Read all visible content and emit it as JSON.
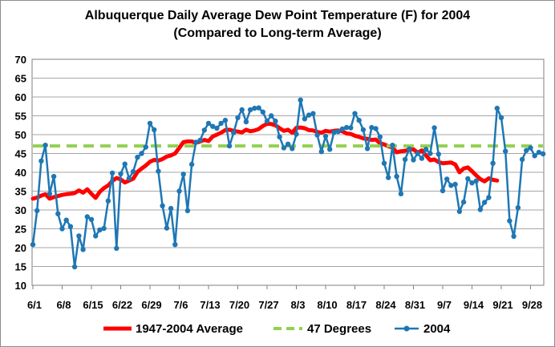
{
  "chart_data": {
    "type": "line",
    "title": "Albuquerque Daily Average Dew Point Temperature (F) for 2004",
    "subtitle": "(Compared to Long-term Average)",
    "xlabel": "",
    "ylabel": "",
    "ylim": [
      10,
      70
    ],
    "yticks": [
      10,
      15,
      20,
      25,
      30,
      35,
      40,
      45,
      50,
      55,
      60,
      65,
      70
    ],
    "xticks": [
      "6/1",
      "6/8",
      "6/15",
      "6/22",
      "6/29",
      "7/6",
      "7/13",
      "7/20",
      "7/27",
      "8/3",
      "8/10",
      "8/17",
      "8/24",
      "8/31",
      "9/7",
      "9/14",
      "9/21",
      "9/28"
    ],
    "grid": true,
    "legend_position": "bottom",
    "colors": {
      "average": "#ff0000",
      "threshold": "#92d050",
      "year": "#1f77b4"
    },
    "series": [
      {
        "name": "1947-2004 Average",
        "style": "thick-line",
        "values": [
          33,
          33.3,
          33.8,
          34.2,
          33,
          33.4,
          33.7,
          34,
          34.2,
          34.3,
          34.5,
          35.2,
          34.6,
          35.5,
          34.3,
          33.2,
          34.8,
          35.8,
          36.5,
          37.7,
          38.5,
          38.1,
          37.3,
          37.8,
          38.3,
          40.1,
          41,
          41.8,
          42.8,
          43.3,
          43.1,
          43.5,
          44.2,
          44.5,
          45,
          46.5,
          48,
          48.2,
          48.2,
          47.8,
          48.2,
          48.6,
          48.3,
          49.5,
          50,
          50.5,
          51.2,
          51.3,
          51,
          50.8,
          50.6,
          51.3,
          50.9,
          51.1,
          51.5,
          52.3,
          52.9,
          52.8,
          52.5,
          51.7,
          51,
          51.3,
          50.5,
          51.8,
          51.9,
          51.7,
          51.2,
          51.1,
          50.7,
          50.5,
          51,
          50.8,
          51,
          51.1,
          50.9,
          50.3,
          50.2,
          49.7,
          49.4,
          49,
          48.9,
          48.6,
          48.7,
          47.7,
          47.4,
          46.9,
          46.6,
          45.3,
          45.6,
          45.7,
          46,
          46.1,
          45.2,
          45.8,
          44.5,
          43.2,
          43.4,
          42.7,
          42.4,
          42.5,
          42.6,
          42.1,
          40,
          41,
          41.3,
          40.3,
          39.2,
          38.2,
          37.6,
          38.4,
          38,
          37.8
        ]
      },
      {
        "name": "47 Degrees",
        "style": "dashed-line",
        "values": [
          47,
          47
        ]
      },
      {
        "name": "2004",
        "style": "line-markers",
        "values": [
          20.8,
          29.8,
          43,
          47.2,
          34.3,
          38.9,
          29,
          25,
          27.3,
          25.6,
          14.9,
          23.1,
          19.5,
          28.2,
          27.5,
          23.1,
          24.7,
          25.1,
          32.4,
          39.8,
          19.8,
          39.6,
          42.2,
          38.4,
          40.2,
          44,
          45,
          46.7,
          53,
          51.3,
          40.3,
          31.1,
          25.2,
          30.4,
          20.8,
          35,
          39.5,
          29.8,
          42.1,
          48,
          48.5,
          51.2,
          53,
          52.2,
          51.7,
          53,
          53.8,
          47,
          50.5,
          54.5,
          56.6,
          53.4,
          56.6,
          57,
          57.1,
          56,
          53.6,
          55,
          53.6,
          49.4,
          46.5,
          47.5,
          46.3,
          50.1,
          59.2,
          54.2,
          55.2,
          55.6,
          49.9,
          45.5,
          49.6,
          46.1,
          50.6,
          50.8,
          51.5,
          51.9,
          51.8,
          55.6,
          53.8,
          51.3,
          46.3,
          51.9,
          51.6,
          49.4,
          42.4,
          38.6,
          47.2,
          38.9,
          34.3,
          43.4,
          46.2,
          43.3,
          45,
          43.7,
          46.1,
          45,
          51.8,
          44.8,
          35.1,
          38.2,
          36.5,
          36.8,
          29.6,
          32.1,
          38.3,
          37.2,
          37.7,
          30.1,
          32,
          33.3,
          42.4,
          57,
          54.5,
          45.6,
          27.1,
          23,
          30.6,
          43.4,
          45.8,
          46.5,
          44.4,
          45.3,
          44.9
        ]
      }
    ]
  }
}
